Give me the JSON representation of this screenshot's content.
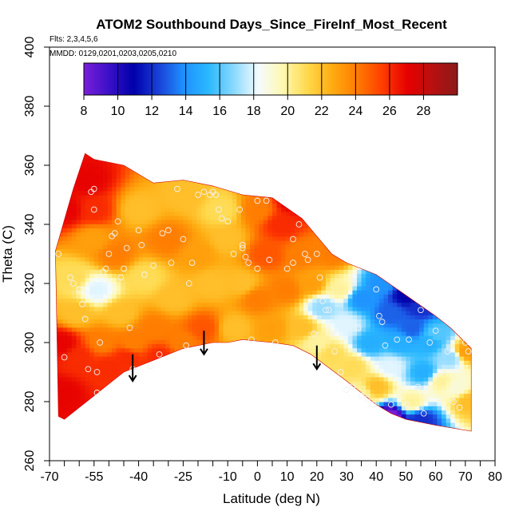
{
  "chart_data": {
    "type": "heatmap",
    "title": "ATOM2 Southbound Days_Since_FireInf_Most_Recent",
    "subtitle_flights": "Flts: 2,3,4,5,6",
    "subtitle_dates": "MMDD: 0129,0201,0203,0205,0210",
    "xlabel": "Latitude (deg N)",
    "ylabel": "Theta (C)",
    "xlim": [
      -70,
      80
    ],
    "ylim": [
      260,
      400
    ],
    "x_ticks": [
      -70,
      -55,
      -40,
      -25,
      -10,
      0,
      10,
      20,
      30,
      40,
      50,
      60,
      70,
      80
    ],
    "x_minor_ticks": [
      -65,
      -60,
      -50,
      -45,
      -35,
      -30,
      -20,
      -15,
      -5,
      5,
      15,
      25,
      35,
      45,
      55,
      65,
      75
    ],
    "y_ticks": [
      260,
      280,
      300,
      320,
      340,
      360,
      380,
      400
    ],
    "colorbar": {
      "min": 8,
      "max": 30,
      "ticks": [
        8,
        10,
        12,
        14,
        16,
        18,
        20,
        22,
        24,
        26,
        28
      ],
      "colors": [
        "#7a1fd8",
        "#3a10c8",
        "#0000aa",
        "#1a40d8",
        "#1e90ff",
        "#2ab8ff",
        "#88d8ff",
        "#f4fbff",
        "#fff8b0",
        "#ffd84a",
        "#ffaa10",
        "#ff7a00",
        "#ff3c00",
        "#e60000",
        "#b81010",
        "#8b1a1a"
      ]
    },
    "domain_top": [
      [
        -68,
        331
      ],
      [
        -66,
        338
      ],
      [
        -64,
        345
      ],
      [
        -62,
        352
      ],
      [
        -60,
        358
      ],
      [
        -58,
        364
      ],
      [
        -55,
        362
      ],
      [
        -45,
        360
      ],
      [
        -35,
        354
      ],
      [
        -25,
        355
      ],
      [
        -15,
        353
      ],
      [
        -5,
        350
      ],
      [
        5,
        349
      ],
      [
        15,
        342
      ],
      [
        20,
        336
      ],
      [
        25,
        330
      ],
      [
        30,
        327
      ],
      [
        40,
        323
      ],
      [
        50,
        316
      ],
      [
        60,
        309
      ],
      [
        65,
        305
      ],
      [
        70,
        300
      ],
      [
        72,
        298
      ]
    ],
    "domain_bottom": [
      [
        72,
        270
      ],
      [
        60,
        272
      ],
      [
        50,
        274
      ],
      [
        45,
        276
      ],
      [
        40,
        279
      ],
      [
        30,
        287
      ],
      [
        22,
        293
      ],
      [
        18,
        296
      ],
      [
        12,
        299
      ],
      [
        5,
        300
      ],
      [
        -5,
        301
      ],
      [
        -10,
        300
      ],
      [
        -15,
        300
      ],
      [
        -25,
        298
      ],
      [
        -35,
        294
      ],
      [
        -40,
        292
      ],
      [
        -45,
        290
      ],
      [
        -50,
        286
      ],
      [
        -55,
        282
      ],
      [
        -60,
        278
      ],
      [
        -65,
        274
      ],
      [
        -67,
        275
      ]
    ],
    "field_control_points": [
      [
        -66,
        300,
        27
      ],
      [
        -66,
        283,
        27
      ],
      [
        -64,
        345,
        27
      ],
      [
        -62,
        322,
        21
      ],
      [
        -61,
        310,
        22
      ],
      [
        -60,
        295,
        26
      ],
      [
        -57,
        355,
        27
      ],
      [
        -55,
        345,
        26
      ],
      [
        -55,
        335,
        23
      ],
      [
        -54,
        318,
        18
      ],
      [
        -52,
        300,
        24
      ],
      [
        -50,
        292,
        26
      ],
      [
        -48,
        330,
        24
      ],
      [
        -46,
        310,
        22
      ],
      [
        -44,
        295,
        26
      ],
      [
        -42,
        300,
        24
      ],
      [
        -40,
        345,
        22
      ],
      [
        -38,
        322,
        21
      ],
      [
        -35,
        305,
        24
      ],
      [
        -33,
        295,
        26
      ],
      [
        -30,
        335,
        24
      ],
      [
        -28,
        315,
        22
      ],
      [
        -25,
        300,
        24
      ],
      [
        -24,
        350,
        22
      ],
      [
        -20,
        330,
        23
      ],
      [
        -18,
        305,
        25
      ],
      [
        -15,
        320,
        22
      ],
      [
        -12,
        345,
        21
      ],
      [
        -10,
        335,
        22
      ],
      [
        -8,
        305,
        22
      ],
      [
        -5,
        320,
        22
      ],
      [
        0,
        345,
        24
      ],
      [
        0,
        315,
        24
      ],
      [
        3,
        330,
        25
      ],
      [
        5,
        305,
        23
      ],
      [
        8,
        340,
        26
      ],
      [
        10,
        318,
        24
      ],
      [
        12,
        348,
        27
      ],
      [
        15,
        330,
        24
      ],
      [
        15,
        305,
        22
      ],
      [
        18,
        320,
        23
      ],
      [
        20,
        300,
        20
      ],
      [
        22,
        312,
        17
      ],
      [
        25,
        330,
        24
      ],
      [
        25,
        296,
        21
      ],
      [
        28,
        318,
        20
      ],
      [
        30,
        306,
        18
      ],
      [
        32,
        292,
        21
      ],
      [
        35,
        315,
        14
      ],
      [
        38,
        300,
        15
      ],
      [
        40,
        285,
        22
      ],
      [
        42,
        320,
        14
      ],
      [
        45,
        310,
        13
      ],
      [
        45,
        292,
        18
      ],
      [
        48,
        300,
        15
      ],
      [
        50,
        316,
        11
      ],
      [
        52,
        305,
        13
      ],
      [
        52,
        280,
        20
      ],
      [
        55,
        312,
        12
      ],
      [
        56,
        290,
        15
      ],
      [
        58,
        300,
        15
      ],
      [
        60,
        303,
        16
      ],
      [
        62,
        287,
        20
      ],
      [
        65,
        295,
        17
      ],
      [
        67,
        285,
        19
      ],
      [
        70,
        297,
        23
      ],
      [
        71,
        280,
        22
      ],
      [
        45,
        275,
        8
      ],
      [
        55,
        274,
        12
      ],
      [
        35,
        283,
        20
      ]
    ],
    "observation_points": [
      [
        -67,
        330
      ],
      [
        -65,
        295
      ],
      [
        -63,
        322
      ],
      [
        -62,
        320
      ],
      [
        -60,
        318
      ],
      [
        -59,
        313
      ],
      [
        -58,
        308
      ],
      [
        -57,
        291
      ],
      [
        -56,
        351
      ],
      [
        -55,
        352
      ],
      [
        -55,
        345
      ],
      [
        -54,
        283
      ],
      [
        -54,
        290
      ],
      [
        -53,
        300
      ],
      [
        -52,
        324
      ],
      [
        -51,
        325
      ],
      [
        -50,
        330
      ],
      [
        -49,
        336
      ],
      [
        -48,
        337
      ],
      [
        -47,
        341
      ],
      [
        -46,
        322
      ],
      [
        -45,
        325
      ],
      [
        -44,
        332
      ],
      [
        -43,
        305
      ],
      [
        -42,
        291
      ],
      [
        -41,
        290
      ],
      [
        -40,
        338
      ],
      [
        -39,
        333
      ],
      [
        -38,
        323
      ],
      [
        -36,
        292
      ],
      [
        -35,
        326
      ],
      [
        -33,
        296
      ],
      [
        -32,
        337
      ],
      [
        -30,
        338
      ],
      [
        -29,
        327
      ],
      [
        -27,
        352
      ],
      [
        -25,
        335
      ],
      [
        -24,
        299
      ],
      [
        -23,
        320
      ],
      [
        -22,
        327
      ],
      [
        -20,
        350
      ],
      [
        -18,
        351
      ],
      [
        -16,
        350
      ],
      [
        -15,
        351
      ],
      [
        -14,
        350
      ],
      [
        -13,
        345
      ],
      [
        -12,
        342
      ],
      [
        -10,
        341
      ],
      [
        -8,
        330
      ],
      [
        -6,
        345
      ],
      [
        -5,
        333
      ],
      [
        -5,
        332
      ],
      [
        -4,
        329
      ],
      [
        -3,
        327
      ],
      [
        -2,
        301
      ],
      [
        0,
        325
      ],
      [
        0,
        348
      ],
      [
        3,
        348
      ],
      [
        4,
        328
      ],
      [
        6,
        300
      ],
      [
        8,
        349
      ],
      [
        10,
        325
      ],
      [
        12,
        327
      ],
      [
        12,
        335
      ],
      [
        14,
        340
      ],
      [
        16,
        330
      ],
      [
        17,
        328
      ],
      [
        19,
        303
      ],
      [
        20,
        330
      ],
      [
        21,
        322
      ],
      [
        22,
        314
      ],
      [
        23,
        311
      ],
      [
        24,
        311
      ],
      [
        25,
        303
      ],
      [
        26,
        297
      ],
      [
        28,
        290
      ],
      [
        30,
        284
      ],
      [
        32,
        285
      ],
      [
        34,
        305
      ],
      [
        35,
        282
      ],
      [
        37,
        281
      ],
      [
        39,
        279
      ],
      [
        40,
        318
      ],
      [
        41,
        309
      ],
      [
        42,
        307
      ],
      [
        43,
        299
      ],
      [
        45,
        279
      ],
      [
        47,
        301
      ],
      [
        50,
        279
      ],
      [
        51,
        301
      ],
      [
        54,
        285
      ],
      [
        55,
        311
      ],
      [
        56,
        276
      ],
      [
        58,
        300
      ],
      [
        60,
        304
      ],
      [
        62,
        290
      ],
      [
        64,
        297
      ],
      [
        66,
        280
      ],
      [
        68,
        278
      ],
      [
        70,
        300
      ],
      [
        71,
        297
      ]
    ],
    "arrows": [
      {
        "x": -42,
        "y_from": 296,
        "y_to": 287
      },
      {
        "x": -18,
        "y_from": 304,
        "y_to": 296
      },
      {
        "x": 20,
        "y_from": 299,
        "y_to": 291
      }
    ]
  }
}
